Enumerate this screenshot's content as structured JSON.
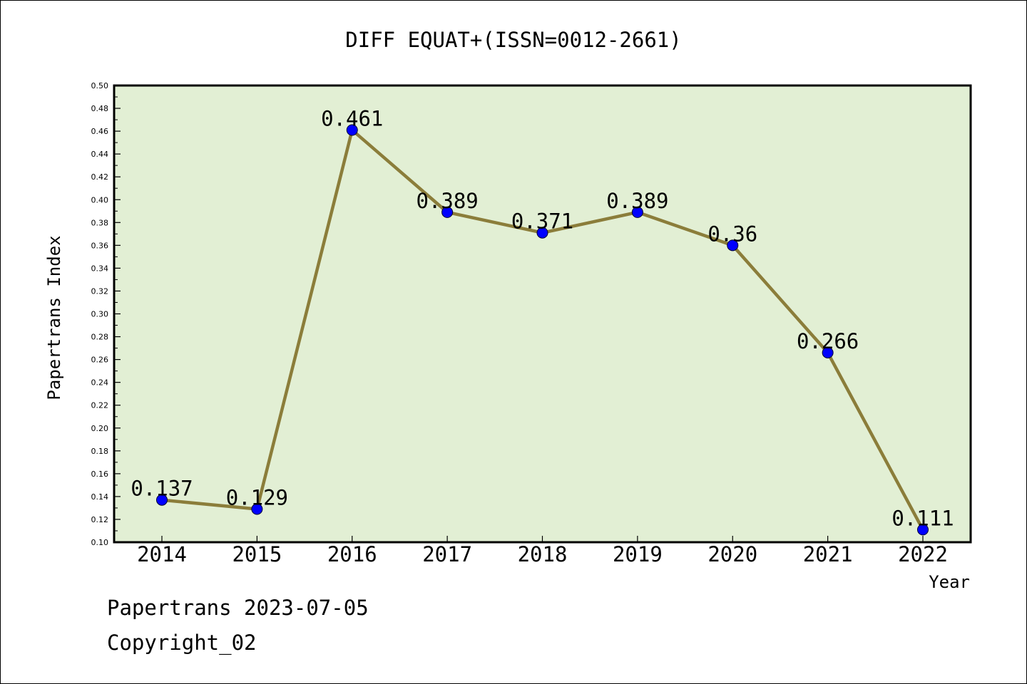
{
  "chart_data": {
    "type": "line",
    "title": "DIFF EQUAT+(ISSN=0012-2661)",
    "xlabel": "Year",
    "ylabel": "Papertrans Index",
    "x": [
      "2014",
      "2015",
      "2016",
      "2017",
      "2018",
      "2019",
      "2020",
      "2021",
      "2022"
    ],
    "series": [
      {
        "values": [
          0.137,
          0.129,
          0.461,
          0.389,
          0.371,
          0.389,
          0.36,
          0.266,
          0.111
        ],
        "labels": [
          "0.137",
          "0.129",
          "0.461",
          "0.389",
          "0.371",
          "0.389",
          "0.36",
          "0.266",
          "0.111"
        ]
      }
    ],
    "ylim": [
      0.1,
      0.5
    ],
    "yticks": [
      "0.10",
      "0.12",
      "0.14",
      "0.16",
      "0.18",
      "0.20",
      "0.22",
      "0.24",
      "0.26",
      "0.28",
      "0.30",
      "0.32",
      "0.34",
      "0.36",
      "0.38",
      "0.40",
      "0.42",
      "0.44",
      "0.46",
      "0.48",
      "0.50"
    ],
    "grid": false,
    "colors": {
      "plot_background": "#e2efd4",
      "line": "#8b7d3a",
      "marker": "#0000ff"
    }
  },
  "footer": {
    "line1": "Papertrans 2023-07-05",
    "line2": "Copyright_02"
  }
}
